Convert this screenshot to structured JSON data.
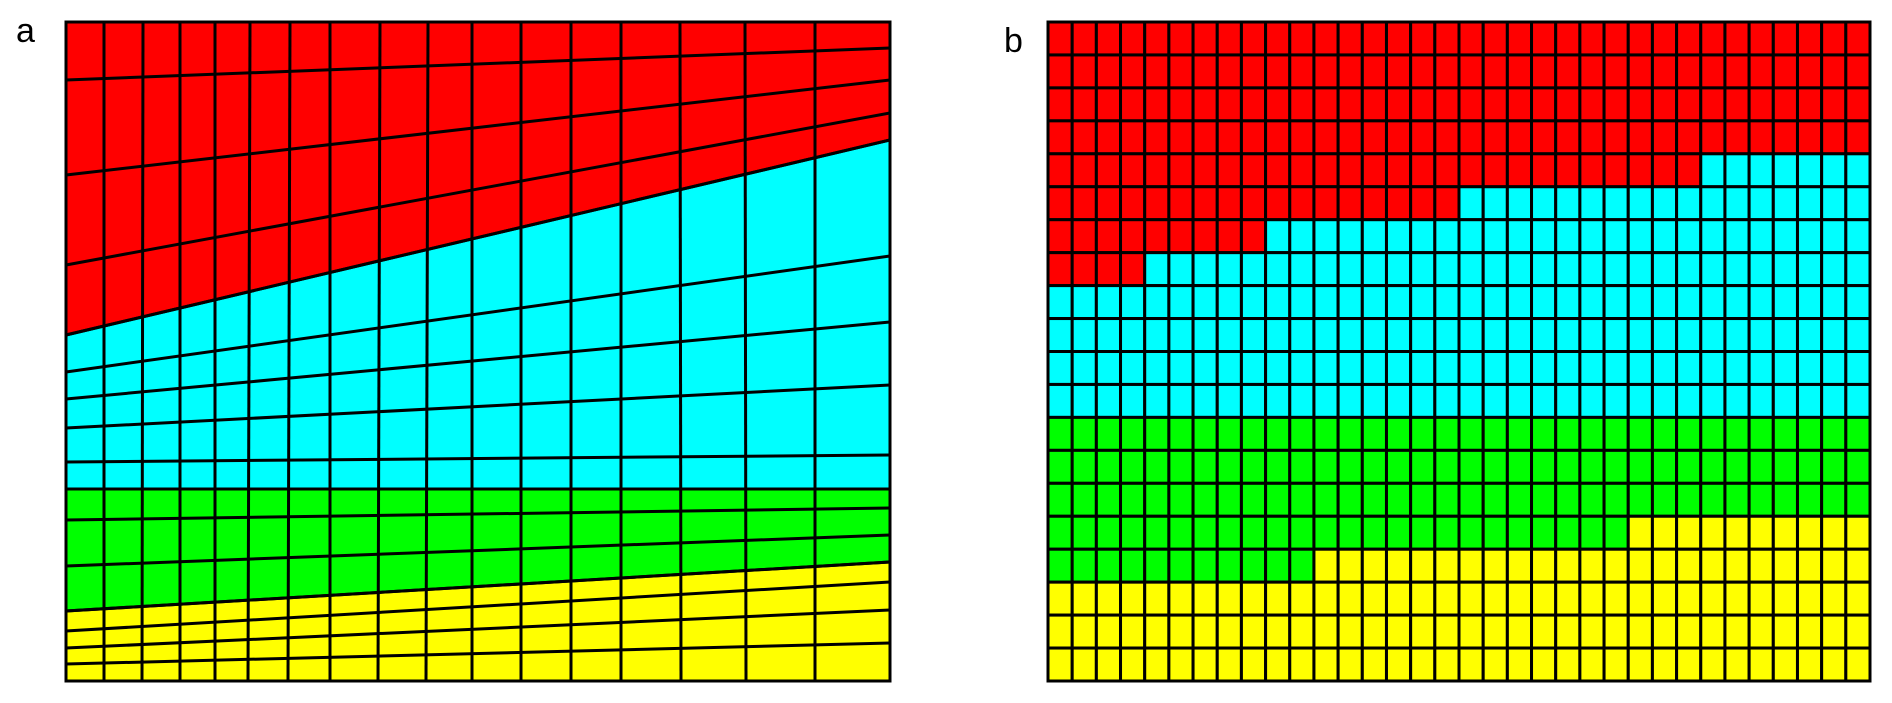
{
  "panels": [
    {
      "label": "a",
      "kind": "deformed-grid",
      "columns": 19,
      "layers": [
        {
          "name": "red",
          "color": "#ff0000",
          "rows": 5
        },
        {
          "name": "cyan",
          "color": "#00ffff",
          "rows": 5
        },
        {
          "name": "green",
          "color": "#00ff00",
          "rows": 3
        },
        {
          "name": "yellow",
          "color": "#ffff00",
          "rows": 5
        }
      ]
    },
    {
      "label": "b",
      "kind": "regular-grid",
      "columns": 34,
      "rows": 20,
      "layers": [
        {
          "name": "red",
          "color": "#ff0000"
        },
        {
          "name": "cyan",
          "color": "#00ffff"
        },
        {
          "name": "green",
          "color": "#00ff00"
        },
        {
          "name": "yellow",
          "color": "#ffff00"
        }
      ]
    }
  ]
}
